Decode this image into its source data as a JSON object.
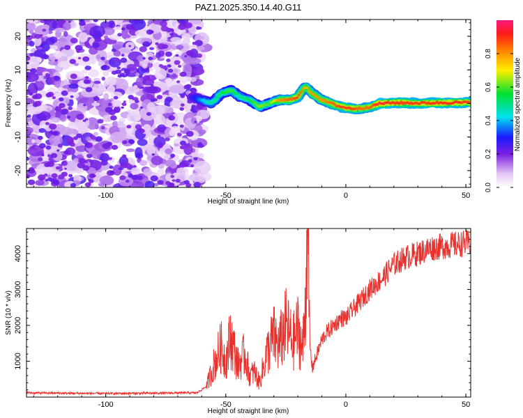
{
  "figure": {
    "title": "PAZ1.2025.350.14.40.G11"
  },
  "chart_data": [
    {
      "type": "heatmap",
      "title": "PAZ1.2025.350.14.40.G11",
      "xlabel": "Height of straight line (km)",
      "ylabel": "Frequency (Hz)",
      "xlim": [
        -133,
        52
      ],
      "ylim": [
        -25,
        25
      ],
      "xticks": [
        -100,
        -50,
        0,
        50
      ],
      "yticks": [
        -20,
        -10,
        0,
        10,
        20
      ],
      "noise_region_x": [
        -133,
        -60
      ],
      "ridge": {
        "x": [
          -64,
          -60,
          -56,
          -52,
          -48,
          -44,
          -40,
          -36,
          -32,
          -28,
          -24,
          -20,
          -17,
          -14,
          -10,
          -6,
          -2,
          2,
          6,
          10,
          14,
          20,
          30,
          40,
          52
        ],
        "freq": [
          2,
          1,
          0,
          3,
          4,
          2,
          1,
          -1,
          0,
          1,
          1,
          2,
          5,
          3,
          1,
          0,
          -1,
          -1.5,
          -1.5,
          -1,
          0,
          0.2,
          0.1,
          0.2,
          0.3
        ],
        "amplitude": [
          0.25,
          0.4,
          0.5,
          0.55,
          0.6,
          0.5,
          0.55,
          0.65,
          0.6,
          0.8,
          0.85,
          0.9,
          0.75,
          0.8,
          0.8,
          0.85,
          0.9,
          0.9,
          0.85,
          0.85,
          0.95,
          0.92,
          0.9,
          0.92,
          0.9
        ]
      },
      "colorbar": {
        "label": "Normalized spectral amplitude",
        "range": [
          0,
          1
        ],
        "ticks": [
          "0.0",
          "0.2",
          "0.4",
          "0.6",
          "0.8"
        ]
      }
    },
    {
      "type": "line",
      "xlabel": "Height of straight line (km)",
      "ylabel": "SNR (10 * v/v)",
      "xlim": [
        -133,
        52
      ],
      "ylim": [
        0,
        4700
      ],
      "xticks": [
        -100,
        -50,
        0,
        50
      ],
      "yticks": [
        1000,
        2000,
        3000,
        4000
      ],
      "series": [
        {
          "name": "SNR",
          "color": "#e8312d",
          "x": [
            -133,
            -120,
            -100,
            -80,
            -62,
            -58,
            -55,
            -52,
            -50,
            -48,
            -45,
            -42,
            -40,
            -38,
            -36,
            -33,
            -30,
            -28,
            -25,
            -22,
            -20,
            -18,
            -17,
            -16,
            -15,
            -14,
            -12,
            -10,
            -8,
            -5,
            -2,
            0,
            5,
            10,
            15,
            20,
            25,
            30,
            35,
            40,
            45,
            52
          ],
          "y": [
            120,
            110,
            100,
            110,
            120,
            300,
            900,
            1400,
            1000,
            1700,
            900,
            1200,
            600,
            700,
            400,
            1200,
            1700,
            1400,
            2000,
            1500,
            1900,
            1300,
            2400,
            4700,
            1500,
            800,
            1200,
            1600,
            1800,
            2000,
            2200,
            2200,
            2600,
            3000,
            3300,
            3700,
            3900,
            4000,
            4150,
            4200,
            4250,
            4300
          ]
        }
      ]
    }
  ]
}
